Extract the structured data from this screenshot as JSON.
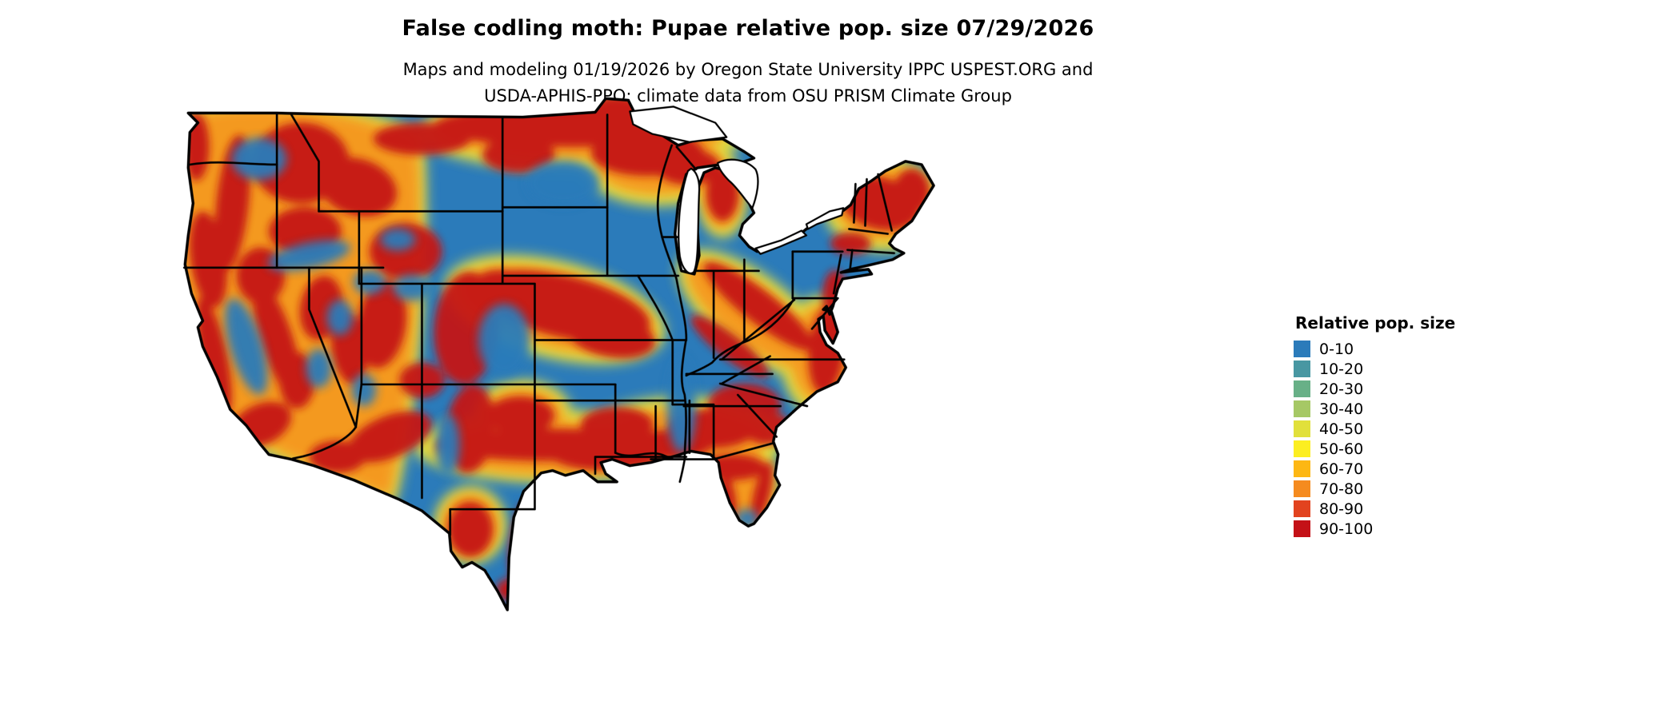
{
  "header": {
    "title": "False codling moth: Pupae relative pop. size 07/29/2026",
    "subtitle_line1": "Maps and modeling 01/19/2026 by Oregon State University IPPC USPEST.ORG and",
    "subtitle_line2": "USDA-APHIS-PPQ; climate data from OSU PRISM Climate Group"
  },
  "map": {
    "region_shown": "contiguous United States with state borders and Great Lakes",
    "base_color": "#2b7bba",
    "border_color": "#000000",
    "water_color": "#ffffff",
    "heat_yellow": "#f0e63a",
    "heat_orange": "#f6921e",
    "heat_red": "#c41515"
  },
  "legend": {
    "title": "Relative pop. size",
    "entries": [
      {
        "label": "0-10",
        "color": "#2b7bba"
      },
      {
        "label": "10-20",
        "color": "#4897a2"
      },
      {
        "label": "20-30",
        "color": "#68b087"
      },
      {
        "label": "30-40",
        "color": "#a6c865"
      },
      {
        "label": "40-50",
        "color": "#e1e03b"
      },
      {
        "label": "50-60",
        "color": "#fcee21"
      },
      {
        "label": "60-70",
        "color": "#fdb714"
      },
      {
        "label": "70-80",
        "color": "#f58b1f"
      },
      {
        "label": "80-90",
        "color": "#e2431f"
      },
      {
        "label": "90-100",
        "color": "#c41117"
      }
    ]
  },
  "chart_data": {
    "type": "heatmap",
    "title": "False codling moth: Pupae relative pop. size 07/29/2026",
    "legend_title": "Relative pop. size",
    "bins": [
      "0-10",
      "10-20",
      "20-30",
      "30-40",
      "40-50",
      "50-60",
      "60-70",
      "70-80",
      "80-90",
      "90-100"
    ],
    "bin_colors": [
      "#2b7bba",
      "#4897a2",
      "#68b087",
      "#a6c865",
      "#e1e03b",
      "#fcee21",
      "#fdb714",
      "#f58b1f",
      "#e2431f",
      "#c41117"
    ],
    "legend_position": "right"
  }
}
